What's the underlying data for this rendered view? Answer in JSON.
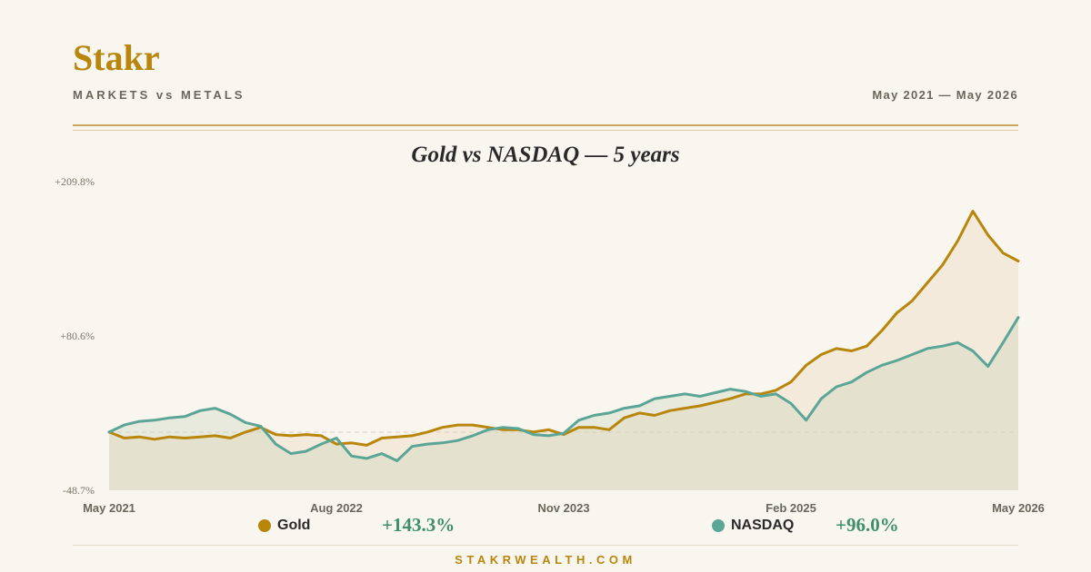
{
  "header": {
    "brand": "Stakr",
    "subtitle": "MARKETS vs METALS",
    "date_range": "May 2021 — May 2026"
  },
  "footer": {
    "site": "STAKRWEALTH.COM"
  },
  "colors": {
    "gold": "#b8860b",
    "nasdaq": "#5ba597",
    "positive": "#3f8f6a",
    "background": "#f9f6f0"
  },
  "chart_data": {
    "type": "line",
    "title": "Gold vs NASDAQ — 5 years",
    "y_unit": "%",
    "ylim": [
      -48.7,
      209.8
    ],
    "ytick_labels": [
      "+209.8%",
      "+80.6%",
      "-48.7%"
    ],
    "ytick_values": [
      209.8,
      80.6,
      -48.7
    ],
    "baseline": 0,
    "xlim": [
      "2021-05",
      "2026-05"
    ],
    "xtick_labels": [
      "May 2021",
      "Aug 2022",
      "Nov 2023",
      "Feb 2025",
      "May 2026"
    ],
    "xtick_values": [
      "2021-05",
      "2022-08",
      "2023-11",
      "2025-02",
      "2026-05"
    ],
    "series": [
      {
        "name": "Gold",
        "color": "#b8860b",
        "final_label": "+143.3%",
        "x": [
          "2021-05",
          "2021-06",
          "2021-07",
          "2021-08",
          "2021-09",
          "2021-10",
          "2021-11",
          "2021-12",
          "2022-01",
          "2022-02",
          "2022-03",
          "2022-04",
          "2022-05",
          "2022-06",
          "2022-07",
          "2022-08",
          "2022-09",
          "2022-10",
          "2022-11",
          "2022-12",
          "2023-01",
          "2023-02",
          "2023-03",
          "2023-04",
          "2023-05",
          "2023-06",
          "2023-07",
          "2023-08",
          "2023-09",
          "2023-10",
          "2023-11",
          "2023-12",
          "2024-01",
          "2024-02",
          "2024-03",
          "2024-04",
          "2024-05",
          "2024-06",
          "2024-07",
          "2024-08",
          "2024-09",
          "2024-10",
          "2024-11",
          "2024-12",
          "2025-01",
          "2025-02",
          "2025-03",
          "2025-04",
          "2025-05",
          "2025-06",
          "2025-07",
          "2025-08",
          "2025-09",
          "2025-10",
          "2025-11",
          "2025-12",
          "2026-01",
          "2026-02",
          "2026-03",
          "2026-04",
          "2026-05"
        ],
        "values": [
          0,
          -5,
          -4,
          -6,
          -4,
          -5,
          -4,
          -3,
          -5,
          0,
          4,
          -2,
          -3,
          -2,
          -3,
          -10,
          -9,
          -11,
          -5,
          -4,
          -3,
          0,
          4,
          6,
          6,
          4,
          2,
          2,
          0,
          2,
          -2,
          4,
          4,
          2,
          12,
          16,
          14,
          18,
          20,
          22,
          25,
          28,
          32,
          32,
          35,
          42,
          56,
          65,
          70,
          68,
          72,
          85,
          100,
          110,
          125,
          140,
          160,
          185,
          165,
          150,
          143.3
        ]
      },
      {
        "name": "NASDAQ",
        "color": "#5ba597",
        "final_label": "+96.0%",
        "x": [
          "2021-05",
          "2021-06",
          "2021-07",
          "2021-08",
          "2021-09",
          "2021-10",
          "2021-11",
          "2021-12",
          "2022-01",
          "2022-02",
          "2022-03",
          "2022-04",
          "2022-05",
          "2022-06",
          "2022-07",
          "2022-08",
          "2022-09",
          "2022-10",
          "2022-11",
          "2022-12",
          "2023-01",
          "2023-02",
          "2023-03",
          "2023-04",
          "2023-05",
          "2023-06",
          "2023-07",
          "2023-08",
          "2023-09",
          "2023-10",
          "2023-11",
          "2023-12",
          "2024-01",
          "2024-02",
          "2024-03",
          "2024-04",
          "2024-05",
          "2024-06",
          "2024-07",
          "2024-08",
          "2024-09",
          "2024-10",
          "2024-11",
          "2024-12",
          "2025-01",
          "2025-02",
          "2025-03",
          "2025-04",
          "2025-05",
          "2025-06",
          "2025-07",
          "2025-08",
          "2025-09",
          "2025-10",
          "2025-11",
          "2025-12",
          "2026-01",
          "2026-02",
          "2026-03",
          "2026-04",
          "2026-05"
        ],
        "values": [
          0,
          6,
          9,
          10,
          12,
          13,
          18,
          20,
          15,
          8,
          5,
          -10,
          -18,
          -16,
          -10,
          -5,
          -20,
          -22,
          -18,
          -24,
          -12,
          -10,
          -9,
          -7,
          -3,
          2,
          4,
          3,
          -2,
          -3,
          -1,
          10,
          14,
          16,
          20,
          22,
          28,
          30,
          32,
          30,
          33,
          36,
          34,
          30,
          32,
          24,
          10,
          28,
          38,
          42,
          50,
          56,
          60,
          65,
          70,
          72,
          75,
          68,
          55,
          75,
          96
        ]
      }
    ]
  }
}
